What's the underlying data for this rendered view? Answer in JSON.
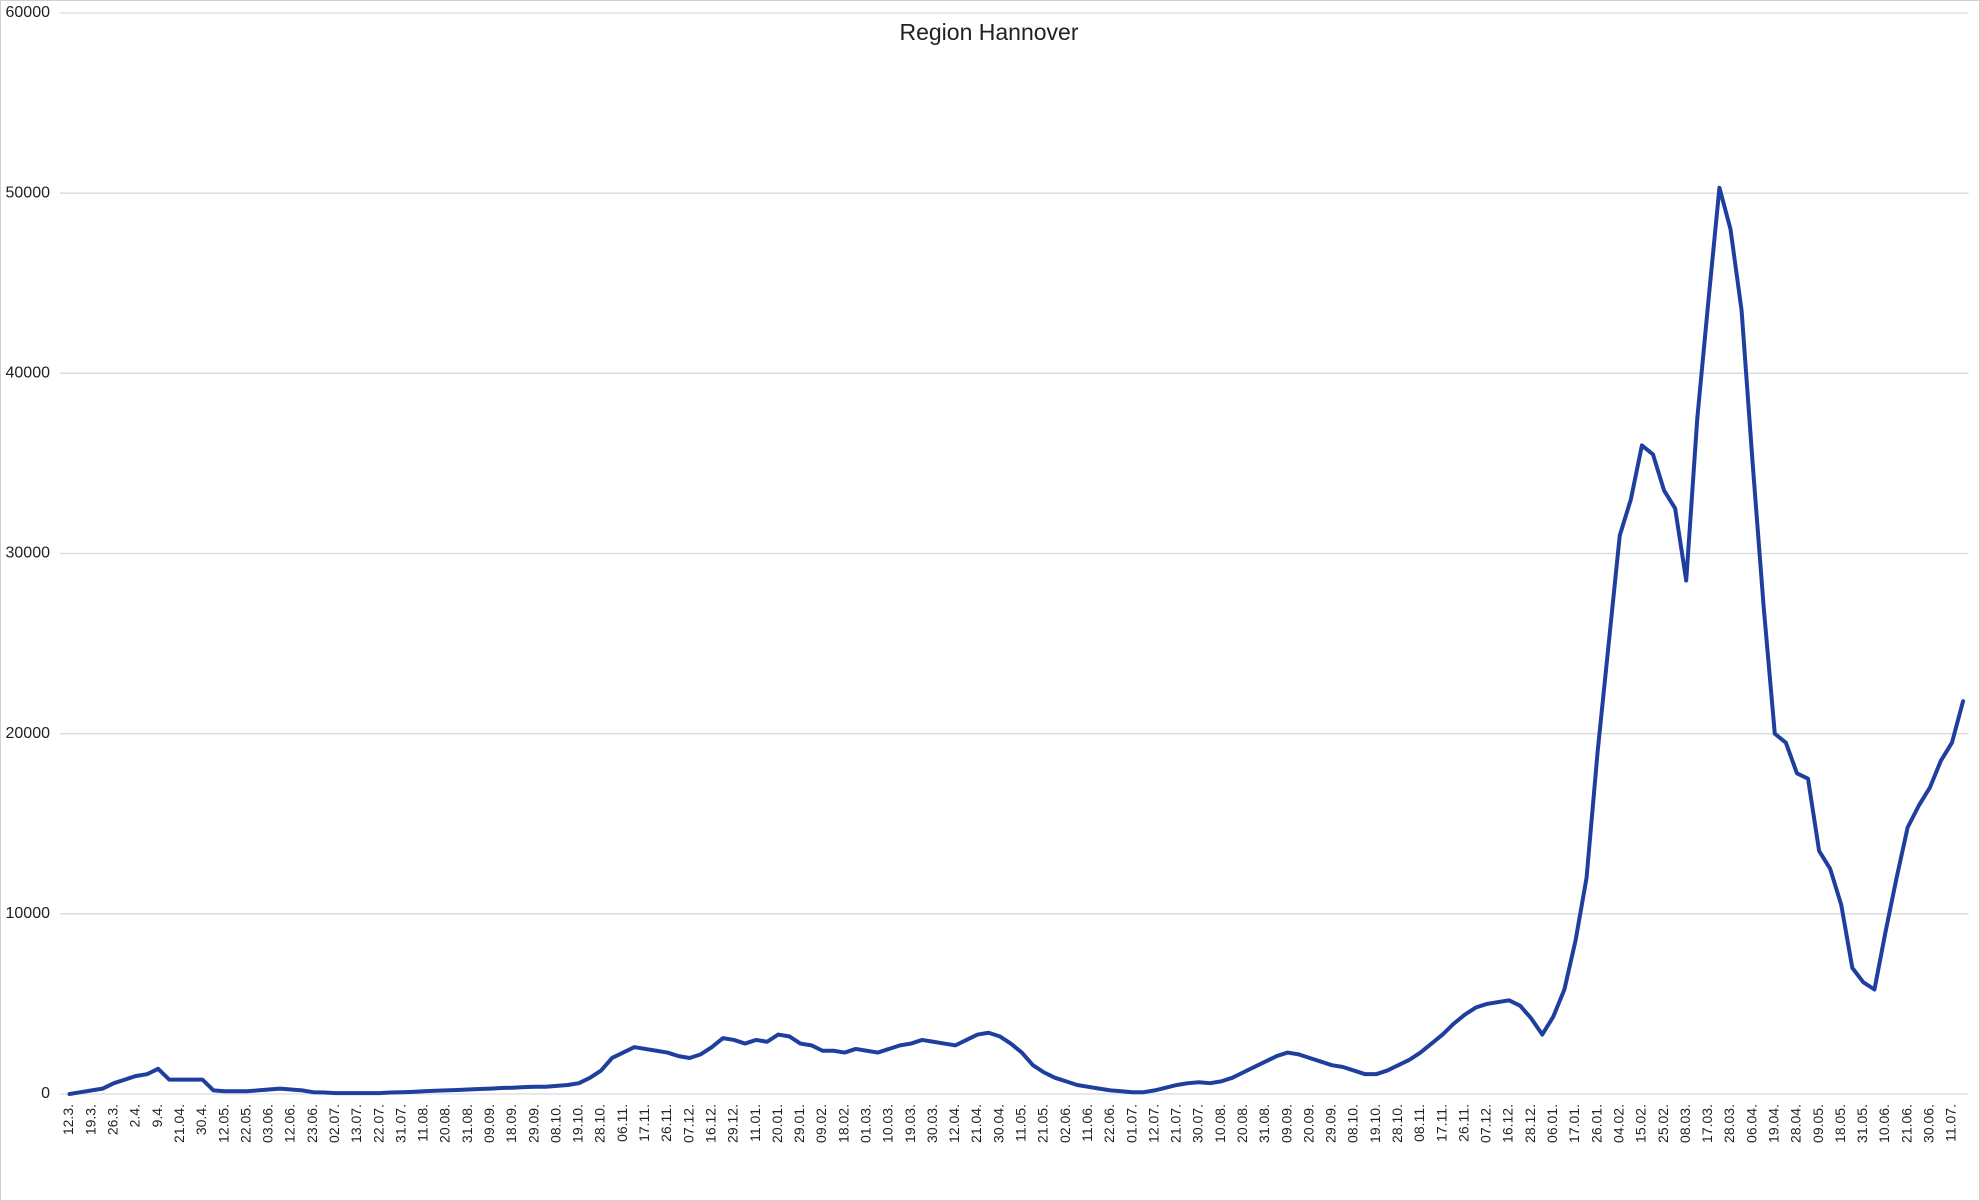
{
  "chart_data": {
    "type": "line",
    "title": "Region Hannover",
    "categories": [
      "12.3.",
      null,
      "19.3.",
      null,
      "26.3.",
      null,
      "2.4.",
      null,
      "9.4.",
      null,
      "21.04.",
      null,
      "30.4.",
      null,
      "12.05.",
      null,
      "22.05.",
      null,
      "03.06.",
      null,
      "12.06.",
      null,
      "23.06.",
      null,
      "02.07.",
      null,
      "13.07.",
      null,
      "22.07.",
      null,
      "31.07.",
      null,
      "11.08.",
      null,
      "20.08.",
      null,
      "31.08.",
      null,
      "09.09.",
      null,
      "18.09.",
      null,
      "29.09.",
      null,
      "08.10.",
      null,
      "19.10.",
      null,
      "28.10.",
      null,
      "06.11.",
      null,
      "17.11.",
      null,
      "26.11.",
      null,
      "07.12.",
      null,
      "16.12.",
      null,
      "29.12.",
      null,
      "11.01.",
      null,
      "20.01.",
      null,
      "29.01.",
      null,
      "09.02.",
      null,
      "18.02.",
      null,
      "01.03.",
      null,
      "10.03.",
      null,
      "19.03.",
      null,
      "30.03.",
      null,
      "12.04.",
      null,
      "21.04.",
      null,
      "30.04.",
      null,
      "11.05.",
      null,
      "21.05.",
      null,
      "02.06.",
      null,
      "11.06.",
      null,
      "22.06.",
      null,
      "01.07.",
      null,
      "12.07.",
      null,
      "21.07.",
      null,
      "30.07.",
      null,
      "10.08.",
      null,
      "20.08.",
      null,
      "31.08.",
      null,
      "09.09.",
      null,
      "20.09.",
      null,
      "29.09.",
      null,
      "08.10.",
      null,
      "19.10.",
      null,
      "28.10.",
      null,
      "08.11.",
      null,
      "17.11.",
      null,
      "26.11.",
      null,
      "07.12.",
      null,
      "16.12.",
      null,
      "28.12.",
      null,
      "06.01.",
      null,
      "17.01.",
      null,
      "26.01.",
      null,
      "04.02.",
      null,
      "15.02.",
      null,
      "25.02.",
      null,
      "08.03.",
      null,
      "17.03.",
      null,
      "28.03.",
      null,
      "06.04.",
      null,
      "19.04.",
      null,
      "28.04.",
      null,
      "09.05.",
      null,
      "18.05.",
      null,
      "31.05.",
      null,
      "10.06.",
      null,
      "21.06.",
      null,
      "30.06.",
      null,
      "11.07.",
      null
    ],
    "values": [
      0,
      100,
      200,
      300,
      600,
      800,
      1000,
      1100,
      1400,
      800,
      800,
      800,
      800,
      200,
      150,
      150,
      150,
      200,
      250,
      300,
      250,
      200,
      100,
      80,
      50,
      50,
      50,
      50,
      50,
      80,
      100,
      120,
      150,
      180,
      200,
      220,
      250,
      280,
      300,
      330,
      350,
      380,
      400,
      400,
      450,
      500,
      600,
      900,
      1300,
      2000,
      2300,
      2600,
      2500,
      2400,
      2300,
      2100,
      2000,
      2200,
      2600,
      3100,
      3000,
      2800,
      3000,
      2900,
      3300,
      3200,
      2800,
      2700,
      2400,
      2400,
      2300,
      2500,
      2400,
      2300,
      2500,
      2700,
      2800,
      3000,
      2900,
      2800,
      2700,
      3000,
      3300,
      3400,
      3200,
      2800,
      2300,
      1600,
      1200,
      900,
      700,
      500,
      400,
      300,
      200,
      150,
      100,
      100,
      200,
      350,
      500,
      600,
      650,
      600,
      700,
      900,
      1200,
      1500,
      1800,
      2100,
      2300,
      2200,
      2000,
      1800,
      1600,
      1500,
      1300,
      1100,
      1100,
      1300,
      1600,
      1900,
      2300,
      2800,
      3300,
      3900,
      4400,
      4800,
      5000,
      5100,
      5200,
      4900,
      4200,
      3300,
      4300,
      5800,
      8500,
      12000,
      19000,
      25000,
      31000,
      33000,
      36000,
      35500,
      33500,
      32500,
      28500,
      37500,
      44000,
      50300,
      48000,
      43500,
      35000,
      27000,
      20000,
      19500,
      17800,
      17500,
      13500,
      12500,
      10500,
      7000,
      6200,
      5800,
      9000,
      12000,
      14800,
      16000,
      17000,
      18500,
      19500,
      21800
    ],
    "color": "#1f3f9f",
    "ylim": [
      0,
      60000
    ],
    "yticks": [
      0,
      10000,
      20000,
      30000,
      40000,
      50000,
      60000
    ],
    "grid": true
  }
}
